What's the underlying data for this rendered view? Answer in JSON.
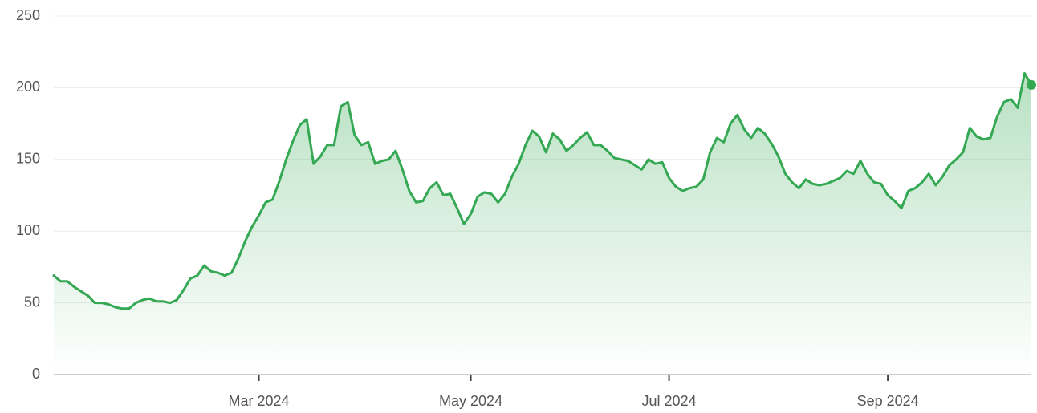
{
  "chart_data": {
    "type": "area",
    "color": "#34a853",
    "ylim": [
      0,
      250
    ],
    "yticks": [
      0,
      50,
      100,
      150,
      200,
      250
    ],
    "grid": true,
    "categories": [
      null,
      null,
      null,
      null,
      null,
      null,
      null,
      null,
      null,
      null,
      null,
      null,
      null,
      null,
      null,
      null,
      null,
      null,
      null,
      null,
      null,
      null,
      null,
      null,
      null,
      null,
      null,
      null,
      null,
      null,
      "Mar 2024",
      null,
      null,
      null,
      null,
      null,
      null,
      null,
      null,
      null,
      null,
      null,
      null,
      null,
      null,
      null,
      null,
      null,
      null,
      null,
      null,
      null,
      null,
      null,
      null,
      null,
      null,
      null,
      null,
      null,
      null,
      "May 2024",
      null,
      null,
      null,
      null,
      null,
      null,
      null,
      null,
      null,
      null,
      null,
      null,
      null,
      null,
      null,
      null,
      null,
      null,
      null,
      null,
      null,
      null,
      null,
      null,
      null,
      null,
      null,
      null,
      "Jul 2024",
      null,
      null,
      null,
      null,
      null,
      null,
      null,
      null,
      null,
      null,
      null,
      null,
      null,
      null,
      null,
      null,
      null,
      null,
      null,
      null,
      null,
      null,
      null,
      null,
      null,
      null,
      null,
      null,
      null,
      null,
      null,
      "Sep 2024",
      null,
      null,
      null,
      null,
      null,
      null,
      null,
      null,
      null,
      null,
      null,
      null,
      null,
      null,
      null,
      null,
      null,
      null,
      null,
      null,
      null
    ],
    "values": [
      69,
      65,
      65,
      61,
      58,
      55,
      50,
      50,
      49,
      47,
      46,
      46,
      50,
      52,
      53,
      51,
      51,
      50,
      52,
      59,
      67,
      69,
      76,
      72,
      71,
      69,
      71,
      81,
      93,
      103,
      111,
      120,
      122,
      135,
      150,
      163,
      174,
      178,
      147,
      152,
      160,
      160,
      187,
      190,
      167,
      160,
      162,
      147,
      149,
      150,
      156,
      143,
      128,
      120,
      121,
      130,
      134,
      125,
      126,
      116,
      105,
      112,
      124,
      127,
      126,
      120,
      126,
      138,
      147,
      160,
      170,
      166,
      155,
      168,
      164,
      156,
      160,
      165,
      169,
      160,
      160,
      156,
      151,
      150,
      149,
      146,
      143,
      150,
      147,
      148,
      137,
      131,
      128,
      130,
      131,
      136,
      155,
      165,
      162,
      175,
      181,
      171,
      165,
      172,
      168,
      161,
      152,
      140,
      134,
      130,
      136,
      133,
      132,
      133,
      135,
      137,
      142,
      140,
      149,
      140,
      134,
      133,
      125,
      121,
      116,
      128,
      130,
      134,
      140,
      132,
      138,
      146,
      150,
      155,
      172,
      166,
      164,
      165,
      180,
      190,
      192,
      186,
      210,
      202
    ]
  }
}
